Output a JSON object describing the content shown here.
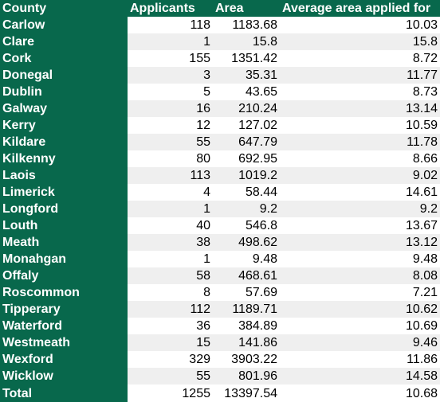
{
  "headers": [
    "County",
    "Applicants",
    "Area",
    "Average area applied for"
  ],
  "rows": [
    {
      "county": "Carlow",
      "applicants": "118",
      "area": "1183.68",
      "avg": "10.03"
    },
    {
      "county": "Clare",
      "applicants": "1",
      "area": "15.8",
      "avg": "15.8"
    },
    {
      "county": "Cork",
      "applicants": "155",
      "area": "1351.42",
      "avg": "8.72"
    },
    {
      "county": "Donegal",
      "applicants": "3",
      "area": "35.31",
      "avg": "11.77"
    },
    {
      "county": "Dublin",
      "applicants": "5",
      "area": "43.65",
      "avg": "8.73"
    },
    {
      "county": "Galway",
      "applicants": "16",
      "area": "210.24",
      "avg": "13.14"
    },
    {
      "county": "Kerry",
      "applicants": "12",
      "area": "127.02",
      "avg": "10.59"
    },
    {
      "county": "Kildare",
      "applicants": "55",
      "area": "647.79",
      "avg": "11.78"
    },
    {
      "county": "Kilkenny",
      "applicants": "80",
      "area": "692.95",
      "avg": "8.66"
    },
    {
      "county": "Laois",
      "applicants": "113",
      "area": "1019.2",
      "avg": "9.02"
    },
    {
      "county": "Limerick",
      "applicants": "4",
      "area": "58.44",
      "avg": "14.61"
    },
    {
      "county": "Longford",
      "applicants": "1",
      "area": "9.2",
      "avg": "9.2"
    },
    {
      "county": "Louth",
      "applicants": "40",
      "area": "546.8",
      "avg": "13.67"
    },
    {
      "county": "Meath",
      "applicants": "38",
      "area": "498.62",
      "avg": "13.12"
    },
    {
      "county": "Monahgan",
      "applicants": "1",
      "area": "9.48",
      "avg": "9.48"
    },
    {
      "county": "Offaly",
      "applicants": "58",
      "area": "468.61",
      "avg": "8.08"
    },
    {
      "county": "Roscommon",
      "applicants": "8",
      "area": "57.69",
      "avg": "7.21"
    },
    {
      "county": "Tipperary",
      "applicants": "112",
      "area": "1189.71",
      "avg": "10.62"
    },
    {
      "county": "Waterford",
      "applicants": "36",
      "area": "384.89",
      "avg": "10.69"
    },
    {
      "county": "Westmeath",
      "applicants": "15",
      "area": "141.86",
      "avg": "9.46"
    },
    {
      "county": "Wexford",
      "applicants": "329",
      "area": "3903.22",
      "avg": "11.86"
    },
    {
      "county": "Wicklow",
      "applicants": "55",
      "area": "801.96",
      "avg": "14.58"
    },
    {
      "county": "Total",
      "applicants": "1255",
      "area": "13397.54",
      "avg": "10.68"
    }
  ],
  "colors": {
    "header_green": "#08684c",
    "stripe_grey": "#efefef"
  }
}
